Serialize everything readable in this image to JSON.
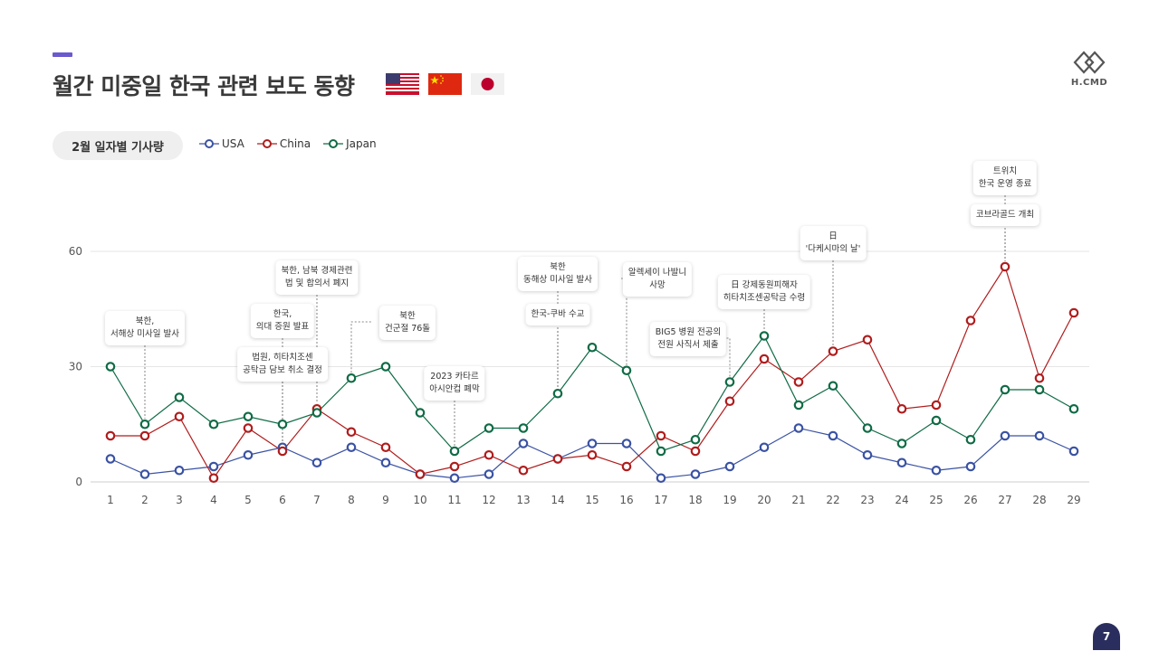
{
  "header": {
    "title": "월간 미중일 한국 관련 보도 동향",
    "flags": [
      "usa-flag-icon",
      "china-flag-icon",
      "japan-flag-icon"
    ]
  },
  "logo": {
    "text": "H.CMD"
  },
  "chart_pill": {
    "label": "2월 일자별 기사량"
  },
  "legend": [
    {
      "name": "USA",
      "color": "#3a52a3"
    },
    {
      "name": "China",
      "color": "#b01c1c"
    },
    {
      "name": "Japan",
      "color": "#0f6b45"
    }
  ],
  "page_number": "7",
  "annotations": [
    {
      "day": 2,
      "text": "북한,\n서해상 미사일 발사",
      "target": "Japan"
    },
    {
      "day": 7,
      "text": "북한, 남북 경제관련\n법 및 합의서 폐지",
      "target": "China"
    },
    {
      "day": 6,
      "text": "한국,\n의대 증원 발표",
      "target": "USA"
    },
    {
      "day": 6,
      "text": "법원, 히타치조센\n공탁금 담보 취소 결정",
      "target": "USA"
    },
    {
      "day": 8,
      "text": "북한\n건군절 76돌",
      "target": "Japan"
    },
    {
      "day": 11,
      "text": "2023 카타르\n아시안컵 폐막",
      "target": "Japan"
    },
    {
      "day": 14,
      "text": "북한\n동해상 미사일 발사",
      "target": "Japan"
    },
    {
      "day": 14,
      "text": "한국-쿠바 수교",
      "target": "Japan"
    },
    {
      "day": 16,
      "text": "알렉세이 나발니\n사망",
      "target": "Japan"
    },
    {
      "day": 19,
      "text": "BIG5 병원 전공의\n전원 사직서 제출",
      "target": "Japan"
    },
    {
      "day": 20,
      "text": "日 강제동원피해자\n히타치조센공탁금 수령",
      "target": "Japan"
    },
    {
      "day": 22,
      "text": "日\n'다케시마의 날'",
      "target": "China"
    },
    {
      "day": 27,
      "text": "트위치\n한국 운영 종료",
      "target": "China"
    },
    {
      "day": 27,
      "text": "코브라골드 개최",
      "target": "China"
    }
  ],
  "chart_data": {
    "type": "line",
    "title": "",
    "xlabel": "",
    "ylabel": "",
    "x": [
      1,
      2,
      3,
      4,
      5,
      6,
      7,
      8,
      9,
      10,
      11,
      12,
      13,
      14,
      15,
      16,
      17,
      18,
      19,
      20,
      21,
      22,
      23,
      24,
      25,
      26,
      27,
      28,
      29
    ],
    "y_ticks": [
      0,
      30,
      60
    ],
    "ylim": [
      0,
      60
    ],
    "grid": true,
    "legend_position": "top-left",
    "series": [
      {
        "name": "USA",
        "color": "#3a52a3",
        "values": [
          6,
          2,
          3,
          4,
          7,
          9,
          5,
          9,
          5,
          2,
          1,
          2,
          10,
          6,
          10,
          10,
          1,
          2,
          4,
          9,
          14,
          12,
          7,
          5,
          3,
          4,
          12,
          12,
          8
        ]
      },
      {
        "name": "China",
        "color": "#b01c1c",
        "values": [
          12,
          12,
          17,
          1,
          14,
          8,
          19,
          13,
          9,
          2,
          4,
          7,
          3,
          6,
          7,
          4,
          12,
          8,
          21,
          32,
          26,
          34,
          37,
          19,
          20,
          42,
          56,
          27,
          44
        ]
      },
      {
        "name": "Japan",
        "color": "#0f6b45",
        "values": [
          30,
          15,
          22,
          15,
          17,
          15,
          18,
          27,
          30,
          18,
          8,
          14,
          14,
          23,
          35,
          29,
          8,
          11,
          26,
          38,
          20,
          25,
          14,
          10,
          16,
          11,
          24,
          24,
          19
        ]
      }
    ]
  }
}
